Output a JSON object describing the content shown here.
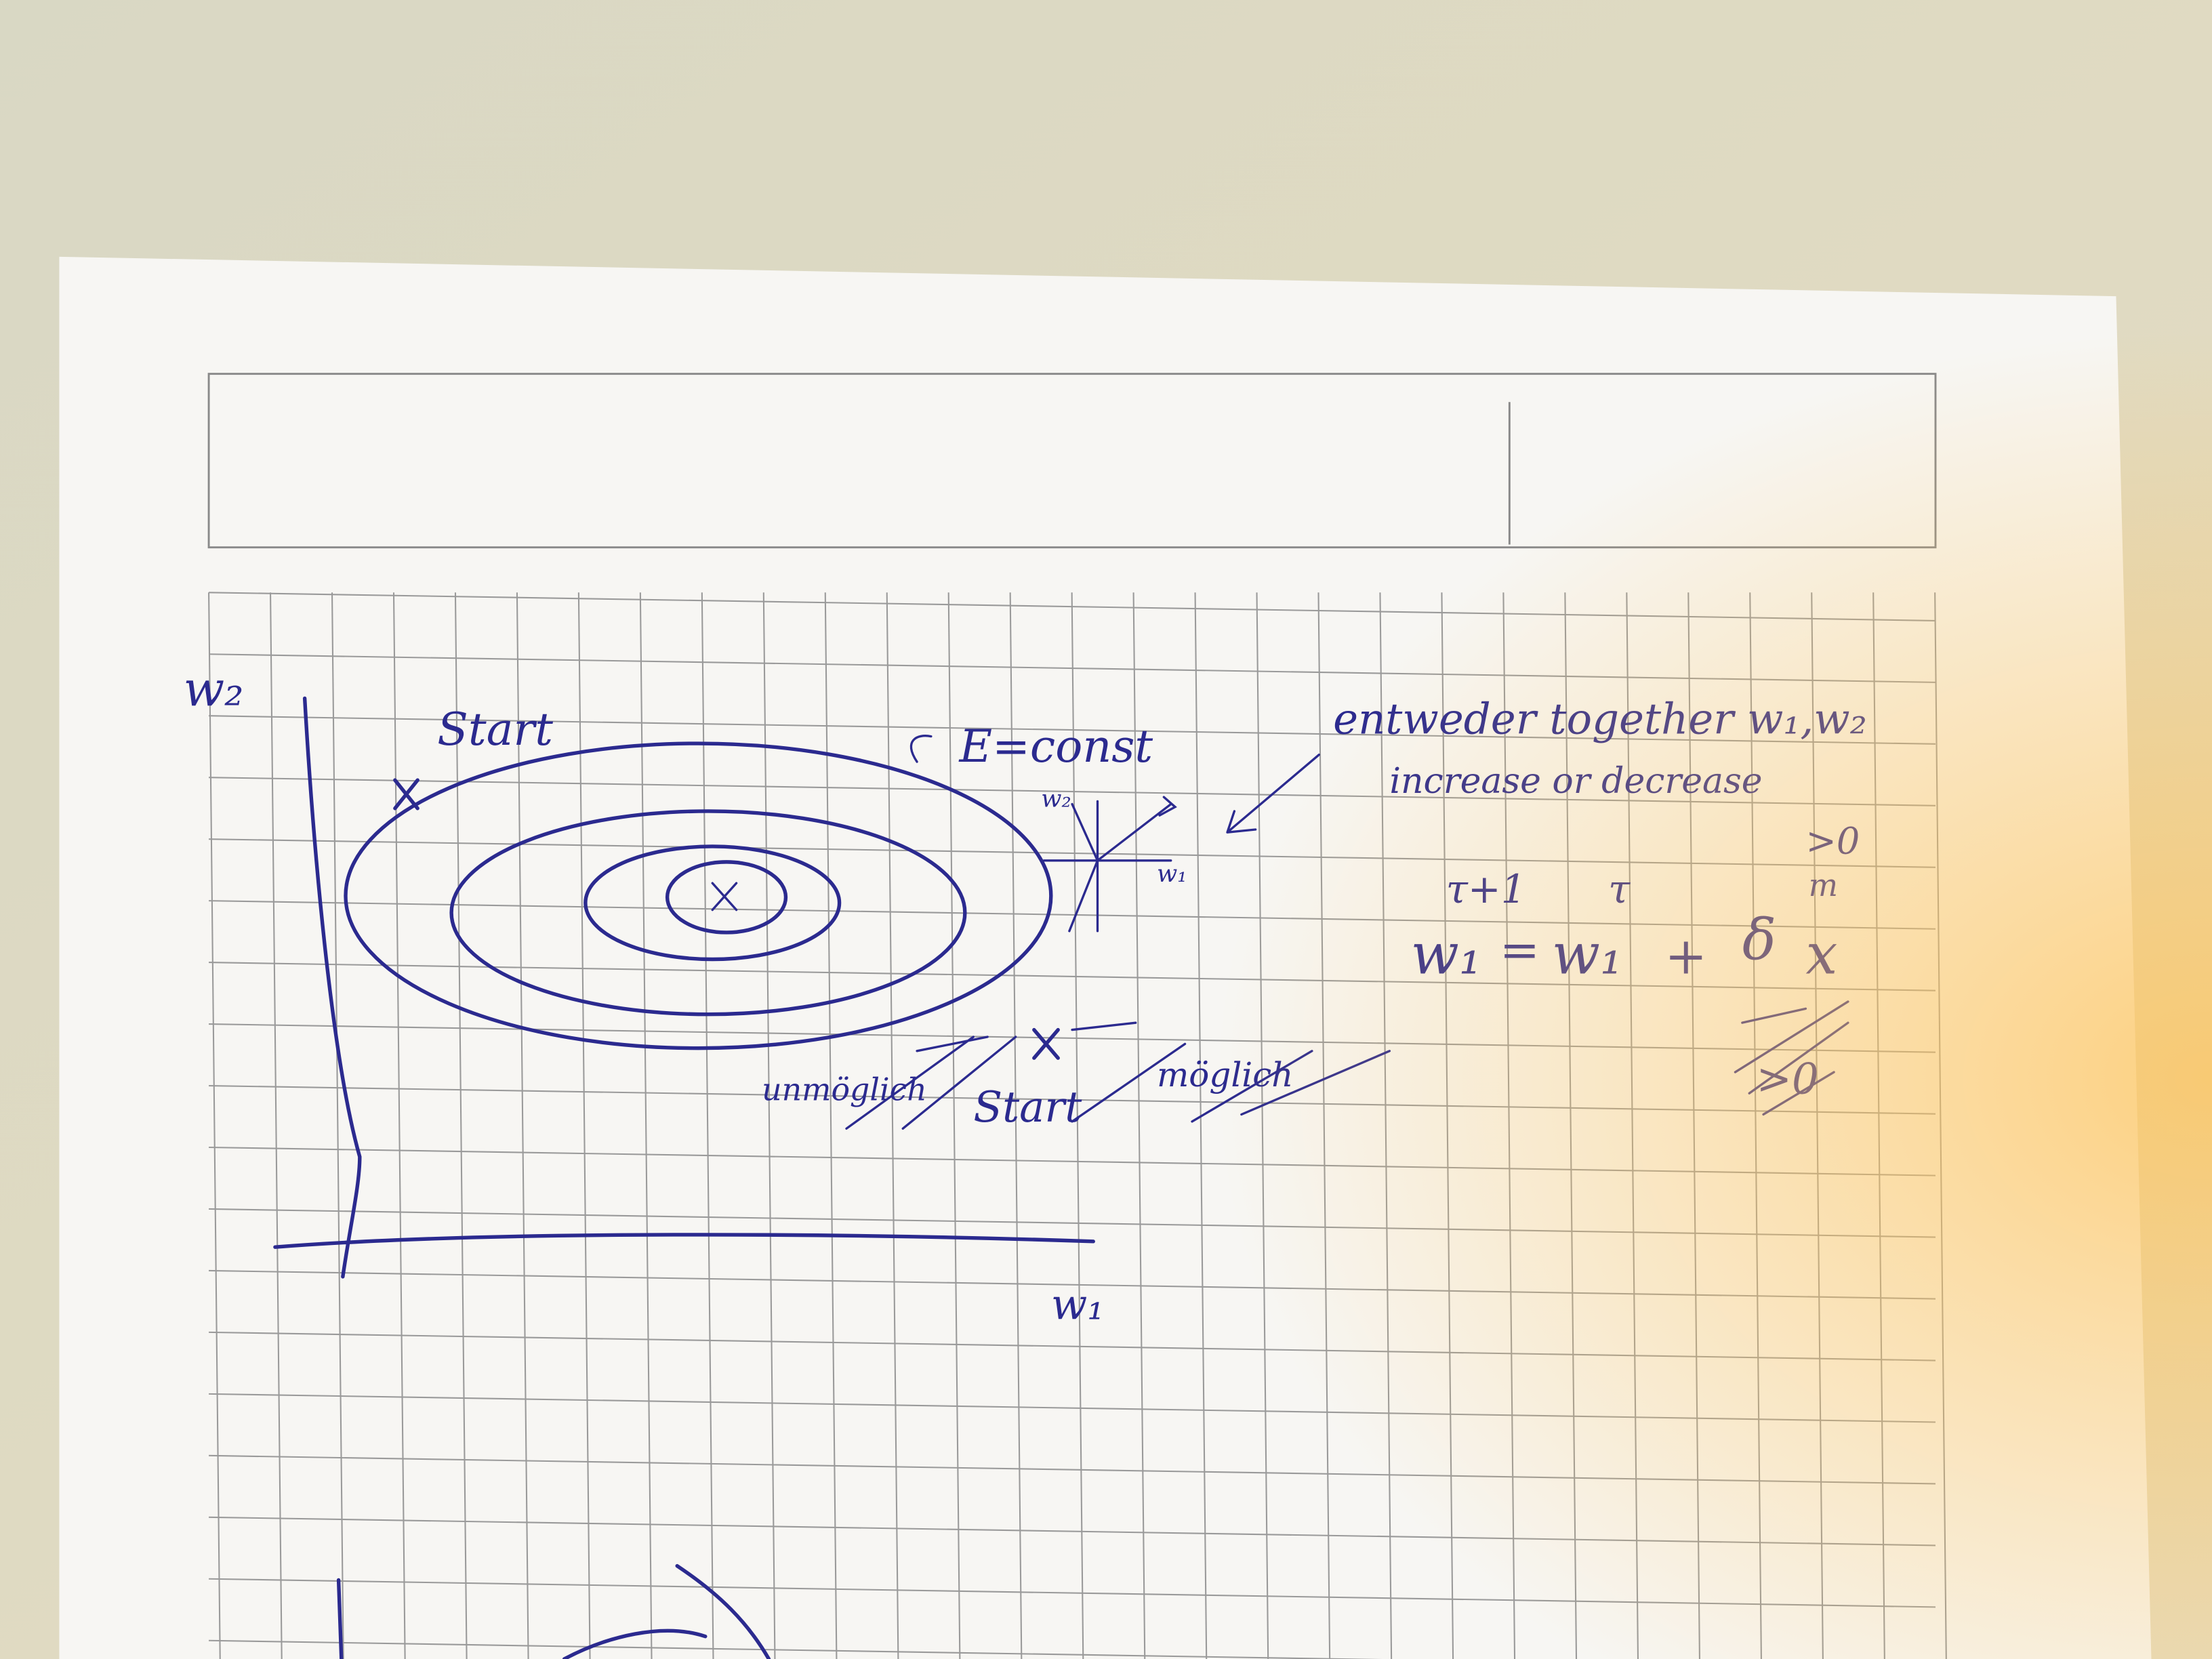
{
  "axes": {
    "y_label": "w₂",
    "x_label": "w₁"
  },
  "annotations": {
    "start_top": "Start",
    "energy": "E=const",
    "gradient_w2": "w₂",
    "gradient_w1": "w₁",
    "impossible": "unmöglich",
    "start_bottom": "Start",
    "possible": "möglich"
  },
  "note": {
    "line1": "entweder together w₁,w₂",
    "line2": "increase or decrease"
  },
  "formula": {
    "sup_left": "τ+1",
    "sup_right": "τ",
    "lhs": "w₁",
    "equals": "=",
    "rhs": "w₁",
    "plus": "+",
    "delta": "δ",
    "x": "x",
    "sup_x": "m",
    "condition": ">0",
    "crossed": ">0"
  }
}
